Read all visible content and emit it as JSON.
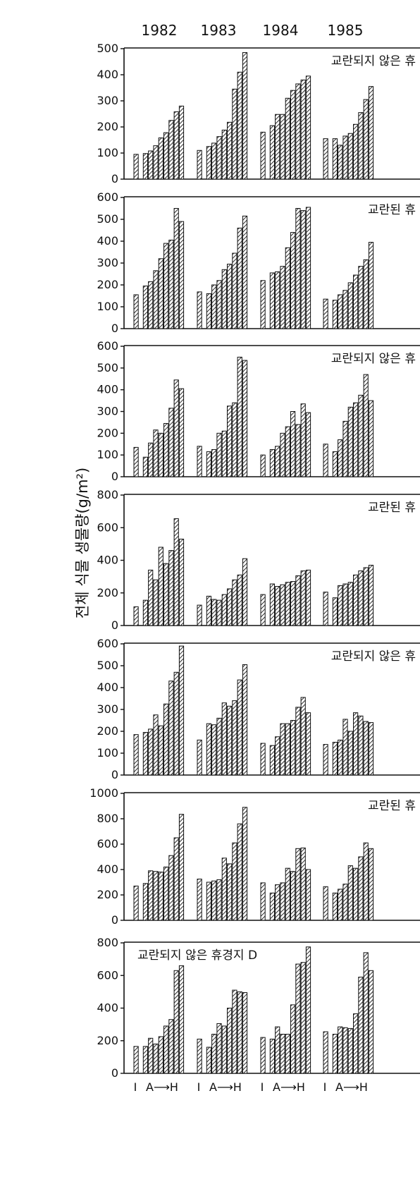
{
  "figure": {
    "ylabel": "전체 식물 생물량(g/m²)",
    "years": [
      "1982",
      "1983",
      "1984",
      "1985"
    ],
    "xgroup_label": [
      "I",
      "A⟶H"
    ]
  },
  "chart_data": [
    {
      "type": "bar",
      "title": "교란되지 않은 휴",
      "ylim": [
        0,
        500
      ],
      "yticks": [
        0,
        100,
        200,
        300,
        400,
        500
      ],
      "groups": [
        {
          "name": "1982",
          "values": [
            95,
            98,
            108,
            128,
            158,
            178,
            225,
            258,
            280
          ]
        },
        {
          "name": "1983",
          "values": [
            110,
            125,
            138,
            163,
            188,
            218,
            345,
            410,
            485
          ]
        },
        {
          "name": "1984",
          "values": [
            180,
            205,
            248,
            248,
            310,
            340,
            365,
            380,
            395
          ]
        },
        {
          "name": "1985",
          "values": [
            155,
            155,
            130,
            165,
            175,
            210,
            255,
            305,
            355
          ]
        }
      ]
    },
    {
      "type": "bar",
      "title": "교란된 휴",
      "ylim": [
        0,
        600
      ],
      "yticks": [
        0,
        100,
        200,
        300,
        400,
        500,
        600
      ],
      "groups": [
        {
          "name": "1982",
          "values": [
            155,
            195,
            215,
            265,
            320,
            390,
            405,
            550,
            490
          ]
        },
        {
          "name": "1983",
          "values": [
            168,
            160,
            200,
            220,
            270,
            295,
            345,
            460,
            515
          ]
        },
        {
          "name": "1984",
          "values": [
            220,
            255,
            260,
            285,
            370,
            440,
            550,
            540,
            555
          ]
        },
        {
          "name": "1985",
          "values": [
            135,
            130,
            155,
            175,
            210,
            245,
            285,
            315,
            395
          ]
        }
      ]
    },
    {
      "type": "bar",
      "title": "교란되지 않은 휴",
      "ylim": [
        0,
        600
      ],
      "yticks": [
        0,
        100,
        200,
        300,
        400,
        500,
        600
      ],
      "groups": [
        {
          "name": "1982",
          "values": [
            135,
            90,
            155,
            215,
            200,
            245,
            315,
            445,
            405
          ]
        },
        {
          "name": "1983",
          "values": [
            140,
            115,
            125,
            200,
            210,
            325,
            340,
            550,
            535
          ]
        },
        {
          "name": "1984",
          "values": [
            100,
            125,
            140,
            200,
            230,
            300,
            240,
            335,
            295
          ]
        },
        {
          "name": "1985",
          "values": [
            150,
            115,
            170,
            255,
            320,
            340,
            375,
            470,
            350
          ]
        }
      ]
    },
    {
      "type": "bar",
      "title": "교란된 휴",
      "ylim": [
        0,
        800
      ],
      "yticks": [
        0,
        200,
        400,
        600,
        800
      ],
      "groups": [
        {
          "name": "1982",
          "values": [
            115,
            155,
            340,
            280,
            480,
            380,
            460,
            655,
            530
          ]
        },
        {
          "name": "1983",
          "values": [
            125,
            180,
            160,
            155,
            190,
            225,
            280,
            310,
            410
          ]
        },
        {
          "name": "1984",
          "values": [
            190,
            255,
            240,
            250,
            265,
            270,
            305,
            335,
            340
          ]
        },
        {
          "name": "1985",
          "values": [
            205,
            170,
            245,
            255,
            265,
            310,
            335,
            355,
            370
          ]
        }
      ]
    },
    {
      "type": "bar",
      "title": "교란되지 않은 휴",
      "ylim": [
        0,
        600
      ],
      "yticks": [
        0,
        100,
        200,
        300,
        400,
        500,
        600
      ],
      "groups": [
        {
          "name": "1982",
          "values": [
            185,
            195,
            210,
            275,
            225,
            325,
            430,
            470,
            590
          ]
        },
        {
          "name": "1983",
          "values": [
            160,
            235,
            230,
            260,
            330,
            315,
            340,
            435,
            505
          ]
        },
        {
          "name": "1984",
          "values": [
            145,
            135,
            175,
            235,
            235,
            250,
            310,
            355,
            285
          ]
        },
        {
          "name": "1985",
          "values": [
            140,
            150,
            160,
            255,
            200,
            285,
            270,
            245,
            240
          ]
        }
      ]
    },
    {
      "type": "bar",
      "title": "교란된 휴",
      "ylim": [
        0,
        1000
      ],
      "yticks": [
        0,
        200,
        400,
        600,
        800,
        1000
      ],
      "groups": [
        {
          "name": "1982",
          "values": [
            270,
            290,
            390,
            385,
            380,
            420,
            510,
            650,
            835
          ]
        },
        {
          "name": "1983",
          "values": [
            325,
            300,
            310,
            320,
            490,
            445,
            610,
            760,
            890
          ]
        },
        {
          "name": "1984",
          "values": [
            295,
            215,
            280,
            295,
            410,
            385,
            565,
            570,
            400
          ]
        },
        {
          "name": "1985",
          "values": [
            265,
            215,
            245,
            285,
            430,
            410,
            500,
            610,
            565
          ]
        }
      ]
    },
    {
      "type": "bar",
      "title": "교란되지 않은 휴경지 D",
      "ylim": [
        0,
        800
      ],
      "yticks": [
        0,
        200,
        400,
        600,
        800
      ],
      "groups": [
        {
          "name": "1982",
          "values": [
            165,
            165,
            215,
            180,
            225,
            290,
            330,
            630,
            660
          ]
        },
        {
          "name": "1983",
          "values": [
            210,
            160,
            240,
            305,
            290,
            400,
            510,
            500,
            495
          ]
        },
        {
          "name": "1984",
          "values": [
            220,
            210,
            285,
            240,
            240,
            420,
            670,
            680,
            775
          ]
        },
        {
          "name": "1985",
          "values": [
            255,
            240,
            285,
            280,
            275,
            365,
            590,
            740,
            630
          ]
        }
      ]
    }
  ]
}
